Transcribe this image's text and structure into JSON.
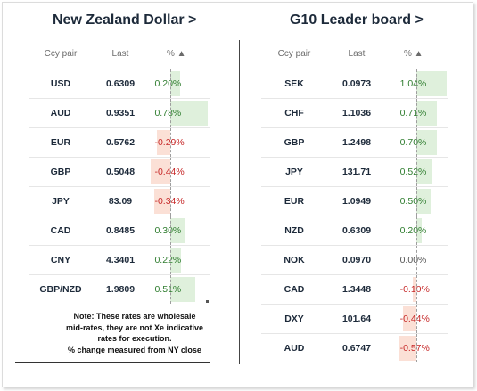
{
  "left_panel": {
    "title": "New Zealand Dollar >",
    "headers": {
      "pair": "Ccy pair",
      "last": "Last",
      "pct": "% ▲"
    },
    "rows": [
      {
        "pair": "USD",
        "last": "0.6309",
        "pct": "0.20%",
        "value": 0.2
      },
      {
        "pair": "AUD",
        "last": "0.9351",
        "pct": "0.78%",
        "value": 0.78
      },
      {
        "pair": "EUR",
        "last": "0.5762",
        "pct": "-0.29%",
        "value": -0.29
      },
      {
        "pair": "GBP",
        "last": "0.5048",
        "pct": "-0.44%",
        "value": -0.44
      },
      {
        "pair": "JPY",
        "last": "83.09",
        "pct": "-0.34%",
        "value": -0.34
      },
      {
        "pair": "CAD",
        "last": "0.8485",
        "pct": "0.30%",
        "value": 0.3
      },
      {
        "pair": "CNY",
        "last": "4.3401",
        "pct": "0.22%",
        "value": 0.22
      },
      {
        "pair": "GBP/NZD",
        "last": "1.9809",
        "pct": "0.51%",
        "value": 0.51
      }
    ],
    "note": [
      "Note: These rates are wholesale",
      "mid-rates, they are not Xe indicative",
      "rates for execution.",
      "% change measured from NY close"
    ]
  },
  "right_panel": {
    "title": "G10 Leader board >",
    "headers": {
      "pair": "Ccy pair",
      "last": "Last",
      "pct": "% ▲"
    },
    "rows": [
      {
        "pair": "SEK",
        "last": "0.0973",
        "pct": "1.04%",
        "value": 1.04
      },
      {
        "pair": "CHF",
        "last": "1.1036",
        "pct": "0.71%",
        "value": 0.71
      },
      {
        "pair": "GBP",
        "last": "1.2498",
        "pct": "0.70%",
        "value": 0.7
      },
      {
        "pair": "JPY",
        "last": "131.71",
        "pct": "0.52%",
        "value": 0.52
      },
      {
        "pair": "EUR",
        "last": "1.0949",
        "pct": "0.50%",
        "value": 0.5
      },
      {
        "pair": "NZD",
        "last": "0.6309",
        "pct": "0.20%",
        "value": 0.2
      },
      {
        "pair": "NOK",
        "last": "0.0970",
        "pct": "0.00%",
        "value": 0.0
      },
      {
        "pair": "CAD",
        "last": "1.3448",
        "pct": "-0.10%",
        "value": -0.1
      },
      {
        "pair": "DXY",
        "last": "101.64",
        "pct": "-0.44%",
        "value": -0.44
      },
      {
        "pair": "AUD",
        "last": "0.6747",
        "pct": "-0.57%",
        "value": -0.57
      }
    ]
  },
  "colors": {
    "positive_bar": "#dff0dc",
    "negative_bar": "#fbe0d6",
    "positive_text": "#2f7d2f",
    "negative_text": "#c62828"
  }
}
